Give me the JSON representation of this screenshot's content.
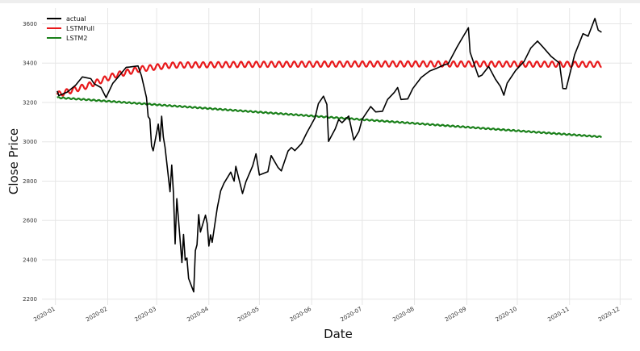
{
  "chart_data": {
    "type": "line",
    "title": "",
    "xlabel": "Date",
    "ylabel": "Close Price",
    "x_ticks": [
      "2020-01",
      "2020-02",
      "2020-03",
      "2020-04",
      "2020-05",
      "2020-06",
      "2020-07",
      "2020-08",
      "2020-09",
      "2020-10",
      "2020-11",
      "2020-12"
    ],
    "y_ticks": [
      "2200",
      "2400",
      "2600",
      "2800",
      "3000",
      "3200",
      "3400",
      "3600"
    ],
    "ylim": [
      2170,
      3680
    ],
    "xlim": [
      "2019-12-24",
      "2020-12-08"
    ],
    "grid": true,
    "legend_position": "top-left",
    "series": [
      {
        "name": "actual",
        "color": "#000000",
        "points": [
          [
            "2020-01-02",
            3258
          ],
          [
            "2020-01-03",
            3235
          ],
          [
            "2020-01-08",
            3253
          ],
          [
            "2020-01-13",
            3288
          ],
          [
            "2020-01-17",
            3330
          ],
          [
            "2020-01-22",
            3321
          ],
          [
            "2020-01-24",
            3295
          ],
          [
            "2020-01-28",
            3276
          ],
          [
            "2020-01-31",
            3225
          ],
          [
            "2020-02-04",
            3297
          ],
          [
            "2020-02-07",
            3327
          ],
          [
            "2020-02-12",
            3379
          ],
          [
            "2020-02-14",
            3380
          ],
          [
            "2020-02-19",
            3386
          ],
          [
            "2020-02-21",
            3337
          ],
          [
            "2020-02-24",
            3225
          ],
          [
            "2020-02-25",
            3128
          ],
          [
            "2020-02-26",
            3116
          ],
          [
            "2020-02-27",
            2979
          ],
          [
            "2020-02-28",
            2954
          ],
          [
            "2020-03-02",
            3090
          ],
          [
            "2020-03-03",
            3003
          ],
          [
            "2020-03-04",
            3130
          ],
          [
            "2020-03-05",
            3024
          ],
          [
            "2020-03-06",
            2972
          ],
          [
            "2020-03-09",
            2746
          ],
          [
            "2020-03-10",
            2882
          ],
          [
            "2020-03-11",
            2741
          ],
          [
            "2020-03-12",
            2481
          ],
          [
            "2020-03-13",
            2711
          ],
          [
            "2020-03-16",
            2386
          ],
          [
            "2020-03-17",
            2529
          ],
          [
            "2020-03-18",
            2398
          ],
          [
            "2020-03-19",
            2409
          ],
          [
            "2020-03-20",
            2305
          ],
          [
            "2020-03-23",
            2237
          ],
          [
            "2020-03-24",
            2447
          ],
          [
            "2020-03-25",
            2476
          ],
          [
            "2020-03-26",
            2630
          ],
          [
            "2020-03-27",
            2541
          ],
          [
            "2020-03-30",
            2627
          ],
          [
            "2020-03-31",
            2585
          ],
          [
            "2020-04-01",
            2470
          ],
          [
            "2020-04-02",
            2527
          ],
          [
            "2020-04-03",
            2489
          ],
          [
            "2020-04-06",
            2664
          ],
          [
            "2020-04-08",
            2750
          ],
          [
            "2020-04-10",
            2790
          ],
          [
            "2020-04-14",
            2846
          ],
          [
            "2020-04-16",
            2800
          ],
          [
            "2020-04-17",
            2875
          ],
          [
            "2020-04-21",
            2737
          ],
          [
            "2020-04-23",
            2797
          ],
          [
            "2020-04-27",
            2878
          ],
          [
            "2020-04-29",
            2939
          ],
          [
            "2020-05-01",
            2831
          ],
          [
            "2020-05-06",
            2848
          ],
          [
            "2020-05-08",
            2930
          ],
          [
            "2020-05-12",
            2870
          ],
          [
            "2020-05-14",
            2852
          ],
          [
            "2020-05-18",
            2953
          ],
          [
            "2020-05-20",
            2971
          ],
          [
            "2020-05-22",
            2955
          ],
          [
            "2020-05-26",
            2991
          ],
          [
            "2020-05-29",
            3044
          ],
          [
            "2020-06-03",
            3122
          ],
          [
            "2020-06-05",
            3194
          ],
          [
            "2020-06-08",
            3232
          ],
          [
            "2020-06-10",
            3190
          ],
          [
            "2020-06-11",
            3002
          ],
          [
            "2020-06-15",
            3066
          ],
          [
            "2020-06-17",
            3113
          ],
          [
            "2020-06-19",
            3097
          ],
          [
            "2020-06-23",
            3131
          ],
          [
            "2020-06-26",
            3009
          ],
          [
            "2020-06-29",
            3053
          ],
          [
            "2020-07-01",
            3115
          ],
          [
            "2020-07-06",
            3179
          ],
          [
            "2020-07-09",
            3152
          ],
          [
            "2020-07-13",
            3155
          ],
          [
            "2020-07-16",
            3215
          ],
          [
            "2020-07-20",
            3251
          ],
          [
            "2020-07-22",
            3276
          ],
          [
            "2020-07-24",
            3215
          ],
          [
            "2020-07-28",
            3218
          ],
          [
            "2020-07-31",
            3271
          ],
          [
            "2020-08-05",
            3327
          ],
          [
            "2020-08-10",
            3360
          ],
          [
            "2020-08-14",
            3373
          ],
          [
            "2020-08-18",
            3389
          ],
          [
            "2020-08-21",
            3397
          ],
          [
            "2020-08-26",
            3478
          ],
          [
            "2020-08-28",
            3508
          ],
          [
            "2020-09-02",
            3580
          ],
          [
            "2020-09-03",
            3455
          ],
          [
            "2020-09-08",
            3331
          ],
          [
            "2020-09-10",
            3339
          ],
          [
            "2020-09-14",
            3383
          ],
          [
            "2020-09-18",
            3319
          ],
          [
            "2020-09-21",
            3281
          ],
          [
            "2020-09-23",
            3237
          ],
          [
            "2020-09-25",
            3298
          ],
          [
            "2020-09-30",
            3363
          ],
          [
            "2020-10-05",
            3408
          ],
          [
            "2020-10-09",
            3477
          ],
          [
            "2020-10-13",
            3512
          ],
          [
            "2020-10-16",
            3484
          ],
          [
            "2020-10-21",
            3435
          ],
          [
            "2020-10-26",
            3400
          ],
          [
            "2020-10-28",
            3271
          ],
          [
            "2020-10-30",
            3270
          ],
          [
            "2020-11-04",
            3443
          ],
          [
            "2020-11-09",
            3550
          ],
          [
            "2020-11-12",
            3537
          ],
          [
            "2020-11-16",
            3627
          ],
          [
            "2020-11-18",
            3568
          ],
          [
            "2020-11-20",
            3557
          ]
        ]
      },
      {
        "name": "LSTMFull",
        "color": "#e8191b",
        "start": "2020-01-02",
        "end": "2020-11-20",
        "trend": [
          [
            "2020-01-02",
            3240
          ],
          [
            "2020-01-20",
            3285
          ],
          [
            "2020-02-05",
            3338
          ],
          [
            "2020-02-20",
            3370
          ],
          [
            "2020-03-10",
            3390
          ],
          [
            "2020-05-01",
            3394
          ],
          [
            "2020-08-01",
            3396
          ],
          [
            "2020-11-20",
            3394
          ]
        ],
        "oscillation_amplitude": 14,
        "oscillation_period_days": 4.5
      },
      {
        "name": "LSTM2",
        "color": "#1a801a",
        "start": "2020-01-02",
        "end": "2020-11-20",
        "trend": [
          [
            "2020-01-02",
            3225
          ],
          [
            "2020-11-20",
            3025
          ]
        ],
        "oscillation_amplitude": 3,
        "oscillation_period_days": 3
      }
    ]
  }
}
